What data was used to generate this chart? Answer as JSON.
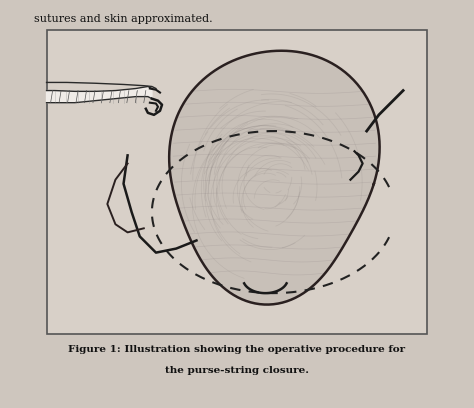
{
  "title_line1": "Figure 1: Illustration showing the operative procedure for",
  "title_line2": "the purse-string closure.",
  "header_text": "sutures and skin approximated.",
  "bg_color": "#d8cfc8",
  "image_bg": "#cfc7bf",
  "border_color": "#2a2a2a",
  "fig_width": 4.74,
  "fig_height": 4.08,
  "dpi": 100
}
